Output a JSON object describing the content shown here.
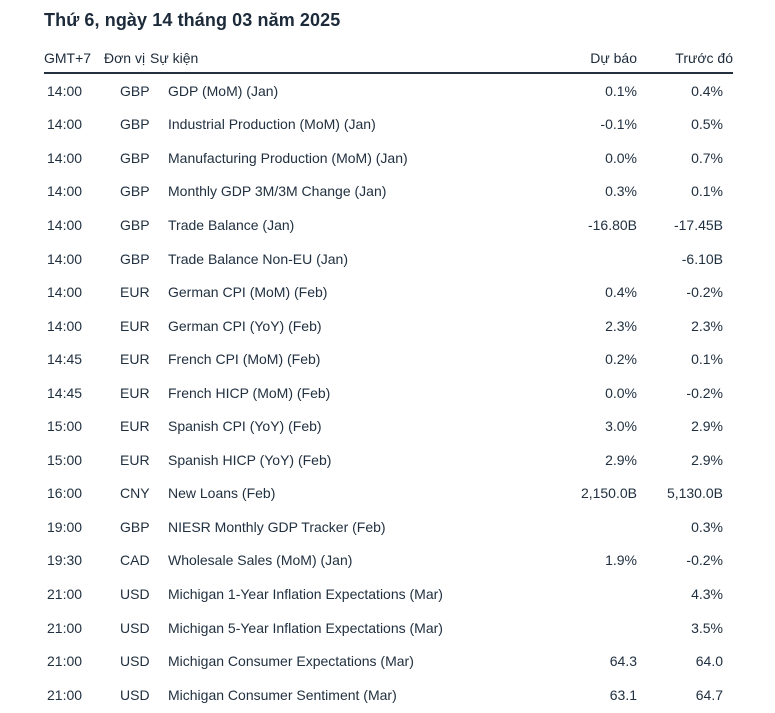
{
  "header": {
    "title": "Thứ 6, ngày 14 tháng 03 năm 2025"
  },
  "table": {
    "columns": {
      "time": "GMT+7",
      "currency": "Đơn vị",
      "event": "Sự kiện",
      "forecast": "Dự báo",
      "previous": "Trước đó"
    },
    "rows": [
      {
        "time": "14:00",
        "currency": "GBP",
        "event": "GDP (MoM) (Jan)",
        "forecast": "0.1%",
        "previous": "0.4%"
      },
      {
        "time": "14:00",
        "currency": "GBP",
        "event": "Industrial Production (MoM) (Jan)",
        "forecast": "-0.1%",
        "previous": "0.5%"
      },
      {
        "time": "14:00",
        "currency": "GBP",
        "event": "Manufacturing Production (MoM) (Jan)",
        "forecast": "0.0%",
        "previous": "0.7%"
      },
      {
        "time": "14:00",
        "currency": "GBP",
        "event": "Monthly GDP 3M/3M Change (Jan)",
        "forecast": "0.3%",
        "previous": "0.1%"
      },
      {
        "time": "14:00",
        "currency": "GBP",
        "event": "Trade Balance (Jan)",
        "forecast": "-16.80B",
        "previous": "-17.45B"
      },
      {
        "time": "14:00",
        "currency": "GBP",
        "event": "Trade Balance Non-EU (Jan)",
        "forecast": "",
        "previous": "-6.10B"
      },
      {
        "time": "14:00",
        "currency": "EUR",
        "event": "German CPI (MoM) (Feb)",
        "forecast": "0.4%",
        "previous": "-0.2%"
      },
      {
        "time": "14:00",
        "currency": "EUR",
        "event": "German CPI (YoY) (Feb)",
        "forecast": "2.3%",
        "previous": "2.3%"
      },
      {
        "time": "14:45",
        "currency": "EUR",
        "event": "French CPI (MoM) (Feb)",
        "forecast": "0.2%",
        "previous": "0.1%"
      },
      {
        "time": "14:45",
        "currency": "EUR",
        "event": "French HICP (MoM) (Feb)",
        "forecast": "0.0%",
        "previous": "-0.2%"
      },
      {
        "time": "15:00",
        "currency": "EUR",
        "event": "Spanish CPI (YoY) (Feb)",
        "forecast": "3.0%",
        "previous": "2.9%"
      },
      {
        "time": "15:00",
        "currency": "EUR",
        "event": "Spanish HICP (YoY) (Feb)",
        "forecast": "2.9%",
        "previous": "2.9%"
      },
      {
        "time": "16:00",
        "currency": "CNY",
        "event": "New Loans (Feb)",
        "forecast": "2,150.0B",
        "previous": "5,130.0B"
      },
      {
        "time": "19:00",
        "currency": "GBP",
        "event": "NIESR Monthly GDP Tracker (Feb)",
        "forecast": "",
        "previous": "0.3%"
      },
      {
        "time": "19:30",
        "currency": "CAD",
        "event": "Wholesale Sales (MoM) (Jan)",
        "forecast": "1.9%",
        "previous": "-0.2%"
      },
      {
        "time": "21:00",
        "currency": "USD",
        "event": "Michigan 1-Year Inflation Expectations (Mar)",
        "forecast": "",
        "previous": "4.3%"
      },
      {
        "time": "21:00",
        "currency": "USD",
        "event": "Michigan 5-Year Inflation Expectations (Mar)",
        "forecast": "",
        "previous": "3.5%"
      },
      {
        "time": "21:00",
        "currency": "USD",
        "event": "Michigan Consumer Expectations (Mar)",
        "forecast": "64.3",
        "previous": "64.0"
      },
      {
        "time": "21:00",
        "currency": "USD",
        "event": "Michigan Consumer Sentiment (Mar)",
        "forecast": "63.1",
        "previous": "64.7"
      }
    ]
  },
  "colors": {
    "text": "#213040",
    "divider": "#22303f",
    "background": "#ffffff"
  }
}
